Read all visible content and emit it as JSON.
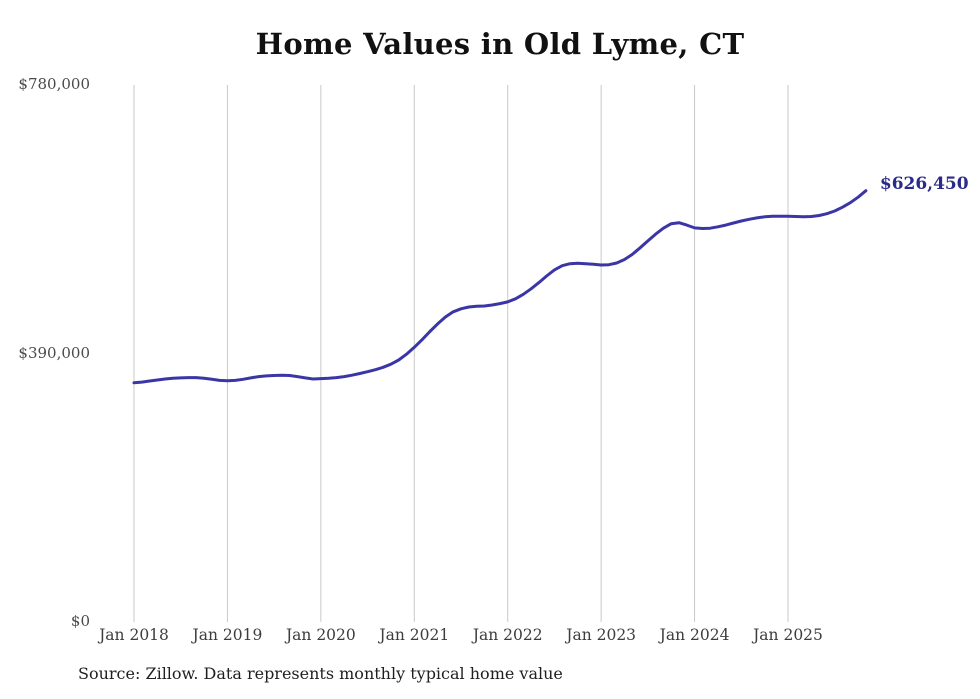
{
  "page": {
    "background": "#ffffff"
  },
  "chart_data": {
    "type": "line",
    "title": "Home Values in Old Lyme, CT",
    "xlabel": "",
    "ylabel": "",
    "x_tick_labels": [
      "Jan 2018",
      "Jan 2019",
      "Jan 2020",
      "Jan 2021",
      "Jan 2022",
      "Jan 2023",
      "Jan 2024",
      "Jan 2025"
    ],
    "y_tick_labels": [
      "$780,000",
      "$390,000",
      "$0"
    ],
    "y_tick_values": [
      780000,
      390000,
      0
    ],
    "ylim": [
      0,
      780000
    ],
    "x_frequency": "monthly",
    "x_range": [
      "Jan 2018",
      "Nov 2025"
    ],
    "grid": "vertical year gridlines only",
    "legend": "none",
    "line_color": "#3b36a5",
    "gridline_color": "#c9c9c9",
    "latest_value": 626450,
    "latest_value_label": "$626,450",
    "latest_label_color": "#2b2a8a",
    "values": [
      347500,
      348500,
      350000,
      351500,
      353000,
      354000,
      354500,
      355000,
      355000,
      354000,
      352500,
      351000,
      350500,
      351000,
      352500,
      354500,
      356500,
      357500,
      358000,
      358500,
      358000,
      356500,
      354500,
      353000,
      353500,
      354000,
      355000,
      356500,
      358500,
      361000,
      363500,
      366500,
      370000,
      374500,
      380500,
      389000,
      399000,
      410000,
      422000,
      433000,
      443000,
      450500,
      455000,
      457500,
      458500,
      459000,
      460500,
      462500,
      465000,
      469500,
      476000,
      484000,
      493000,
      502500,
      511500,
      517500,
      520500,
      521000,
      520500,
      519500,
      518500,
      519000,
      521500,
      526500,
      534000,
      543500,
      553500,
      563500,
      572000,
      578500,
      580000,
      576500,
      572500,
      571500,
      572000,
      574000,
      576500,
      579500,
      582500,
      585000,
      587000,
      588500,
      589500,
      589500,
      589500,
      589000,
      588500,
      589000,
      590500,
      593000,
      597000,
      602500,
      609000,
      617000,
      626450
    ],
    "source": "Source: Zillow. Data represents monthly typical home value"
  }
}
